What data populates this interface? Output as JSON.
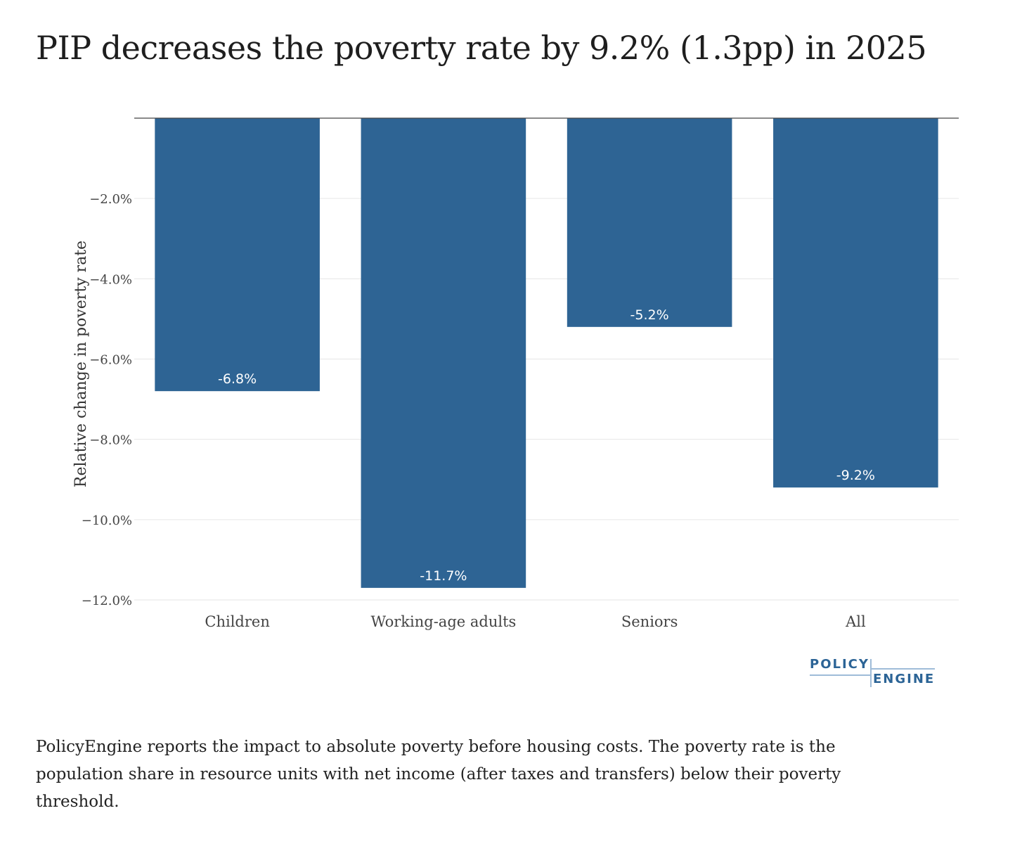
{
  "title": "PIP decreases the poverty rate by 9.2% (1.3pp) in 2025",
  "footnote": "PolicyEngine reports the impact to absolute poverty before housing costs. The poverty rate is the population share in resource units with net income (after taxes and transfers) below their poverty threshold.",
  "logo": {
    "top": "POLICY",
    "bottom": "ENGINE"
  },
  "colors": {
    "bar": "#2e6494",
    "grid": "#e6e6e6",
    "zero_line": "#444444",
    "bar_label": "#ffffff",
    "tick_label": "#444444"
  },
  "chart_data": {
    "type": "bar",
    "categories": [
      "Children",
      "Working-age adults",
      "Seniors",
      "All"
    ],
    "values": [
      -6.8,
      -11.7,
      -5.2,
      -9.2
    ],
    "value_labels": [
      "-6.8%",
      "-11.7%",
      "-5.2%",
      "-9.2%"
    ],
    "ylabel": "Relative change in poverty rate",
    "ylim": [
      -12.0,
      0
    ],
    "yticks": [
      -2.0,
      -4.0,
      -6.0,
      -8.0,
      -10.0,
      -12.0
    ],
    "ytick_labels": [
      "−2.0%",
      "−4.0%",
      "−6.0%",
      "−8.0%",
      "−10.0%",
      "−12.0%"
    ],
    "grid": true,
    "legend": "none"
  }
}
